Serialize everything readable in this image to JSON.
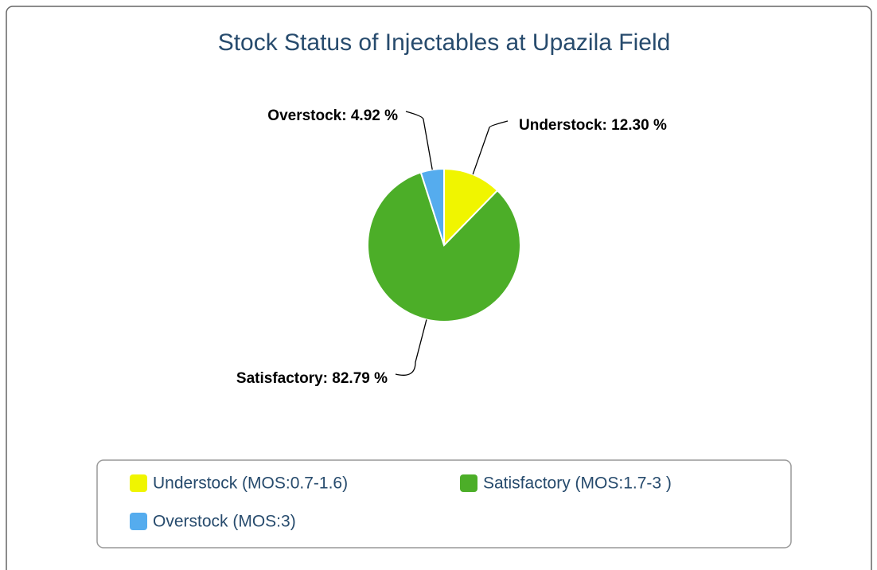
{
  "chart_data": {
    "type": "pie",
    "title": "Stock Status of Injectables at Upazila Field",
    "categories": [
      "Understock (MOS:0.7-1.6)",
      "Satisfactory (MOS:1.7-3 )",
      "Overstock (MOS:3)"
    ],
    "values": [
      12.3,
      82.79,
      4.92
    ],
    "value_labels": [
      "Understock: 12.30 %",
      "Satisfactory: 82.79 %",
      "Overstock: 4.92 %"
    ],
    "colors": [
      "#f0f500",
      "#4cae28",
      "#55acee"
    ],
    "legend": "bottom"
  }
}
